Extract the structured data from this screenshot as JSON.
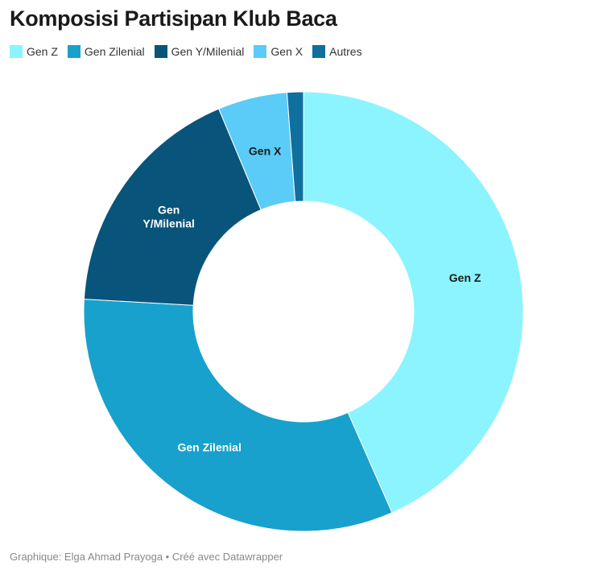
{
  "chart_data": {
    "type": "pie",
    "title": "Komposisi Partisipan Klub Baca",
    "categories": [
      "Gen Z",
      "Gen Zilenial",
      "Gen Y/Milenial",
      "Gen X",
      "Autres"
    ],
    "values": [
      43.4,
      32.5,
      17.8,
      5.1,
      1.2
    ],
    "colors": [
      "#8bf4fe",
      "#18a1cd",
      "#09547a",
      "#5bcbf7",
      "#0f6f9e"
    ],
    "label_colors": [
      "#1a1a1a",
      "#ffffff",
      "#ffffff",
      "#1a1a1a",
      "#ffffff"
    ],
    "slice_labels": [
      "Gen Z",
      "Gen Zilenial",
      "Gen Y/Milenial",
      "Gen X",
      ""
    ],
    "donut": true,
    "legend_position": "top-left"
  },
  "footer": "Graphique: Elga Ahmad Prayoga • Créé avec Datawrapper"
}
